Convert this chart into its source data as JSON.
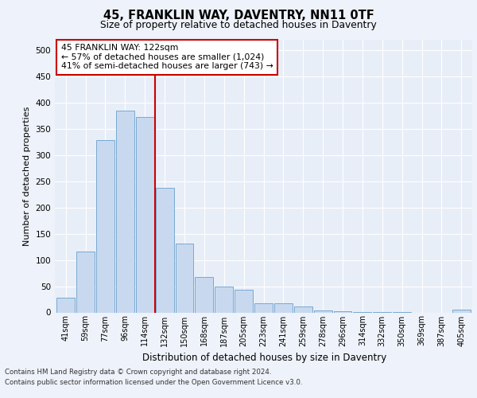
{
  "title_line1": "45, FRANKLIN WAY, DAVENTRY, NN11 0TF",
  "title_line2": "Size of property relative to detached houses in Daventry",
  "xlabel": "Distribution of detached houses by size in Daventry",
  "ylabel": "Number of detached properties",
  "categories": [
    "41sqm",
    "59sqm",
    "77sqm",
    "96sqm",
    "114sqm",
    "132sqm",
    "150sqm",
    "168sqm",
    "187sqm",
    "205sqm",
    "223sqm",
    "241sqm",
    "259sqm",
    "278sqm",
    "296sqm",
    "314sqm",
    "332sqm",
    "350sqm",
    "369sqm",
    "387sqm",
    "405sqm"
  ],
  "values": [
    28,
    116,
    328,
    385,
    373,
    237,
    132,
    68,
    50,
    44,
    17,
    17,
    11,
    4,
    2,
    1,
    1,
    1,
    0,
    0,
    6
  ],
  "bar_color": "#c8d9ef",
  "bar_edge_color": "#6aa0cc",
  "vline_x": 4.5,
  "vline_color": "#cc0000",
  "annotation_text": "45 FRANKLIN WAY: 122sqm\n← 57% of detached houses are smaller (1,024)\n41% of semi-detached houses are larger (743) →",
  "annotation_box_color": "#ffffff",
  "annotation_box_edge": "#cc0000",
  "ylim": [
    0,
    520
  ],
  "yticks": [
    0,
    50,
    100,
    150,
    200,
    250,
    300,
    350,
    400,
    450,
    500
  ],
  "footer_line1": "Contains HM Land Registry data © Crown copyright and database right 2024.",
  "footer_line2": "Contains public sector information licensed under the Open Government Licence v3.0.",
  "bg_color": "#eef2fa",
  "plot_bg_color": "#e8eef8"
}
